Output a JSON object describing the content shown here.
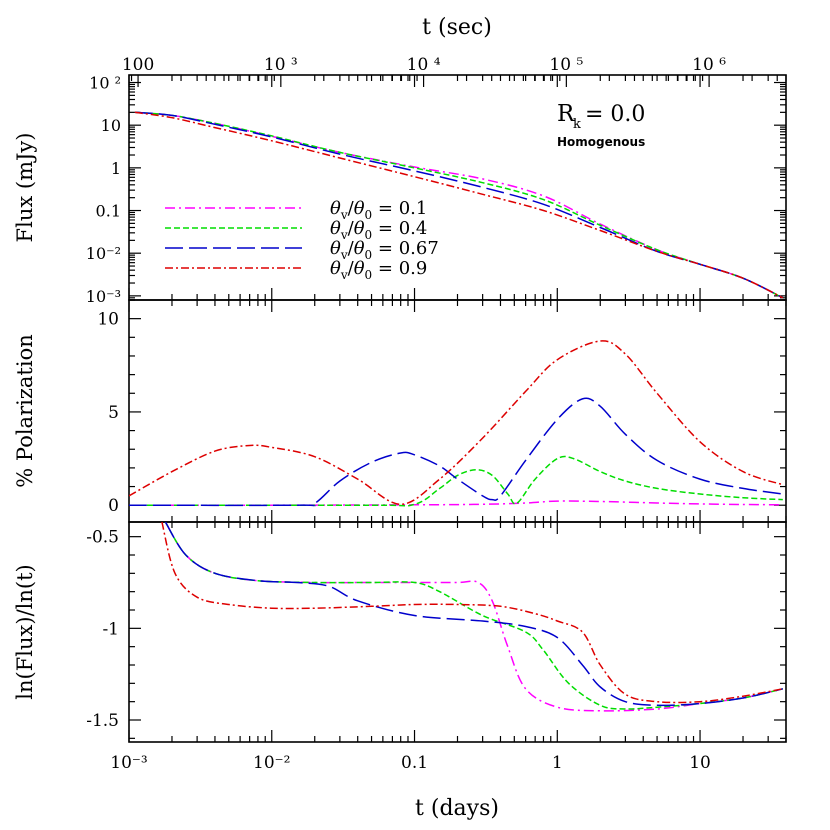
{
  "chart_data": {
    "type": "line",
    "x_axis": {
      "label": "t (days)",
      "scale": "log",
      "range": [
        0.001,
        40
      ],
      "tick_labels": [
        "10⁻³",
        "10⁻²",
        "0.1",
        "1",
        "10"
      ]
    },
    "top_axis": {
      "label": "t (sec)",
      "scale": "log",
      "tick_labels": [
        "100",
        "10 ³",
        "10 ⁴",
        "10 ⁵",
        "10 ⁶"
      ]
    },
    "panels": [
      {
        "id": "flux",
        "ylabel": "Flux (mJy)",
        "yscale": "log",
        "ylim": [
          0.0008,
          150
        ],
        "ytick_labels": [
          "10 ²",
          "10",
          "1",
          "0.1",
          "10⁻²",
          "10⁻³"
        ],
        "annotation_main": "R",
        "annotation_sub": "k",
        "annotation_value": " = 0.0",
        "annotation_note": "Homogenous",
        "series": [
          {
            "name_label": "0.1",
            "color": "#ff00ff",
            "dash": "10,4,2,4",
            "x": [
              0.0011,
              0.002,
              0.004,
              0.01,
              0.03,
              0.1,
              0.3,
              0.8,
              2,
              5,
              10,
              20,
              38
            ],
            "y": [
              20,
              17,
              11,
              5.5,
              2.3,
              1.05,
              0.55,
              0.22,
              0.048,
              0.012,
              0.0055,
              0.0026,
              0.0009
            ]
          },
          {
            "name_label": "0.4",
            "color": "#00dd00",
            "dash": "6,3",
            "x": [
              0.0011,
              0.002,
              0.004,
              0.01,
              0.03,
              0.1,
              0.3,
              0.8,
              2,
              5,
              10,
              20,
              38
            ],
            "y": [
              20,
              17,
              11,
              5.6,
              2.3,
              1.0,
              0.45,
              0.18,
              0.045,
              0.012,
              0.0055,
              0.0026,
              0.0009
            ]
          },
          {
            "name_label": "0.67",
            "color": "#0000cc",
            "dash": "18,6",
            "x": [
              0.0011,
              0.002,
              0.004,
              0.01,
              0.03,
              0.1,
              0.3,
              0.8,
              2,
              5,
              10,
              20,
              38
            ],
            "y": [
              20,
              17,
              10.5,
              5.3,
              2.1,
              0.85,
              0.35,
              0.14,
              0.04,
              0.011,
              0.0055,
              0.0026,
              0.0009
            ]
          },
          {
            "name_label": "0.9",
            "color": "#dd0000",
            "dash": "8,3,2,3",
            "x": [
              0.0011,
              0.002,
              0.004,
              0.01,
              0.03,
              0.1,
              0.3,
              0.8,
              2,
              5,
              10,
              20,
              38
            ],
            "y": [
              20,
              15,
              8.8,
              4.3,
              1.7,
              0.62,
              0.24,
              0.1,
              0.034,
              0.011,
              0.0055,
              0.0026,
              0.0009
            ]
          }
        ],
        "legend_lines": [
          {
            "ratio": "0.1",
            "color": "#ff00ff",
            "dash": "10,4,2,4"
          },
          {
            "ratio": "0.4",
            "color": "#00dd00",
            "dash": "6,3"
          },
          {
            "ratio": "0.67",
            "color": "#0000cc",
            "dash": "18,6"
          },
          {
            "ratio": "0.9",
            "color": "#dd0000",
            "dash": "8,3,2,3"
          }
        ]
      },
      {
        "id": "polarization",
        "ylabel": "% Polarization",
        "yscale": "linear",
        "ylim": [
          -0.9,
          11
        ],
        "ytick_labels": [
          "0",
          "5",
          "10"
        ],
        "series": [
          {
            "name_label": "0.1",
            "color": "#ff00ff",
            "dash": "10,4,2,4",
            "x": [
              0.001,
              0.01,
              0.1,
              0.3,
              0.6,
              1,
              2,
              5,
              10,
              20,
              38
            ],
            "y": [
              0,
              0,
              0.02,
              0.05,
              0.12,
              0.22,
              0.2,
              0.12,
              0.07,
              0.04,
              0.02
            ]
          },
          {
            "name_label": "0.4",
            "color": "#00dd00",
            "dash": "6,3",
            "x": [
              0.001,
              0.05,
              0.1,
              0.15,
              0.2,
              0.27,
              0.35,
              0.45,
              0.52,
              0.7,
              1.0,
              1.3,
              2,
              3,
              5,
              10,
              20,
              38
            ],
            "y": [
              0,
              0,
              0.05,
              0.9,
              1.6,
              1.9,
              1.6,
              0.6,
              0.1,
              1.4,
              2.5,
              2.5,
              1.8,
              1.3,
              0.9,
              0.6,
              0.4,
              0.3
            ]
          },
          {
            "name_label": "0.67",
            "color": "#0000cc",
            "dash": "18,6",
            "x": [
              0.001,
              0.015,
              0.02,
              0.03,
              0.05,
              0.08,
              0.1,
              0.15,
              0.2,
              0.3,
              0.35,
              0.4,
              0.6,
              1.0,
              1.5,
              2,
              3,
              5,
              10,
              20,
              38
            ],
            "y": [
              0,
              0,
              0.1,
              1.3,
              2.3,
              2.8,
              2.7,
              2.1,
              1.4,
              0.5,
              0.3,
              0.5,
              2.4,
              4.6,
              5.7,
              5.3,
              3.8,
              2.4,
              1.4,
              0.9,
              0.6
            ]
          },
          {
            "name_label": "0.9",
            "color": "#dd0000",
            "dash": "8,3,2,3",
            "x": [
              0.001,
              0.002,
              0.004,
              0.007,
              0.01,
              0.02,
              0.04,
              0.08,
              0.15,
              0.3,
              0.6,
              1,
              2,
              3,
              5,
              10,
              20,
              38
            ],
            "y": [
              0.5,
              1.8,
              2.9,
              3.2,
              3.1,
              2.6,
              1.4,
              0.05,
              1.4,
              3.6,
              6.1,
              7.8,
              8.8,
              8.1,
              6,
              3.4,
              1.8,
              1.1
            ]
          }
        ]
      },
      {
        "id": "slope",
        "ylabel": "ln(Flux)/ln(t)",
        "yscale": "linear",
        "ylim": [
          -1.62,
          -0.42
        ],
        "ytick_labels": [
          "-0.5",
          "-1",
          "-1.5"
        ],
        "series": [
          {
            "name_label": "0.1",
            "color": "#ff00ff",
            "dash": "10,4,2,4",
            "x": [
              0.0018,
              0.0025,
              0.004,
              0.008,
              0.02,
              0.05,
              0.1,
              0.2,
              0.28,
              0.35,
              0.45,
              0.6,
              1,
              2,
              5,
              10,
              20,
              38
            ],
            "y": [
              -0.42,
              -0.6,
              -0.7,
              -0.74,
              -0.75,
              -0.75,
              -0.75,
              -0.75,
              -0.75,
              -0.85,
              -1.1,
              -1.33,
              -1.43,
              -1.45,
              -1.44,
              -1.41,
              -1.38,
              -1.33
            ]
          },
          {
            "name_label": "0.4",
            "color": "#00dd00",
            "dash": "6,3",
            "x": [
              0.0018,
              0.0025,
              0.004,
              0.008,
              0.02,
              0.05,
              0.1,
              0.15,
              0.3,
              0.6,
              0.8,
              1.2,
              2,
              3,
              5,
              10,
              20,
              38
            ],
            "y": [
              -0.42,
              -0.6,
              -0.7,
              -0.74,
              -0.75,
              -0.75,
              -0.75,
              -0.8,
              -0.93,
              -1.02,
              -1.12,
              -1.3,
              -1.42,
              -1.44,
              -1.43,
              -1.41,
              -1.38,
              -1.33
            ]
          },
          {
            "name_label": "0.67",
            "color": "#0000cc",
            "dash": "18,6",
            "x": [
              0.0018,
              0.0025,
              0.004,
              0.008,
              0.015,
              0.025,
              0.04,
              0.1,
              0.3,
              0.6,
              1,
              1.5,
              2,
              3,
              5,
              10,
              20,
              38
            ],
            "y": [
              -0.42,
              -0.6,
              -0.7,
              -0.74,
              -0.75,
              -0.77,
              -0.85,
              -0.93,
              -0.96,
              -0.99,
              -1.05,
              -1.2,
              -1.32,
              -1.4,
              -1.42,
              -1.41,
              -1.38,
              -1.33
            ]
          },
          {
            "name_label": "0.9",
            "color": "#dd0000",
            "dash": "8,3,2,3",
            "x": [
              0.0017,
              0.0021,
              0.003,
              0.005,
              0.01,
              0.02,
              0.05,
              0.1,
              0.2,
              0.4,
              0.7,
              1,
              1.5,
              2,
              3,
              5,
              10,
              20,
              38
            ],
            "y": [
              -0.42,
              -0.7,
              -0.83,
              -0.87,
              -0.89,
              -0.89,
              -0.88,
              -0.87,
              -0.87,
              -0.88,
              -0.92,
              -0.96,
              -1.02,
              -1.2,
              -1.36,
              -1.4,
              -1.4,
              -1.37,
              -1.33
            ]
          }
        ]
      }
    ]
  }
}
